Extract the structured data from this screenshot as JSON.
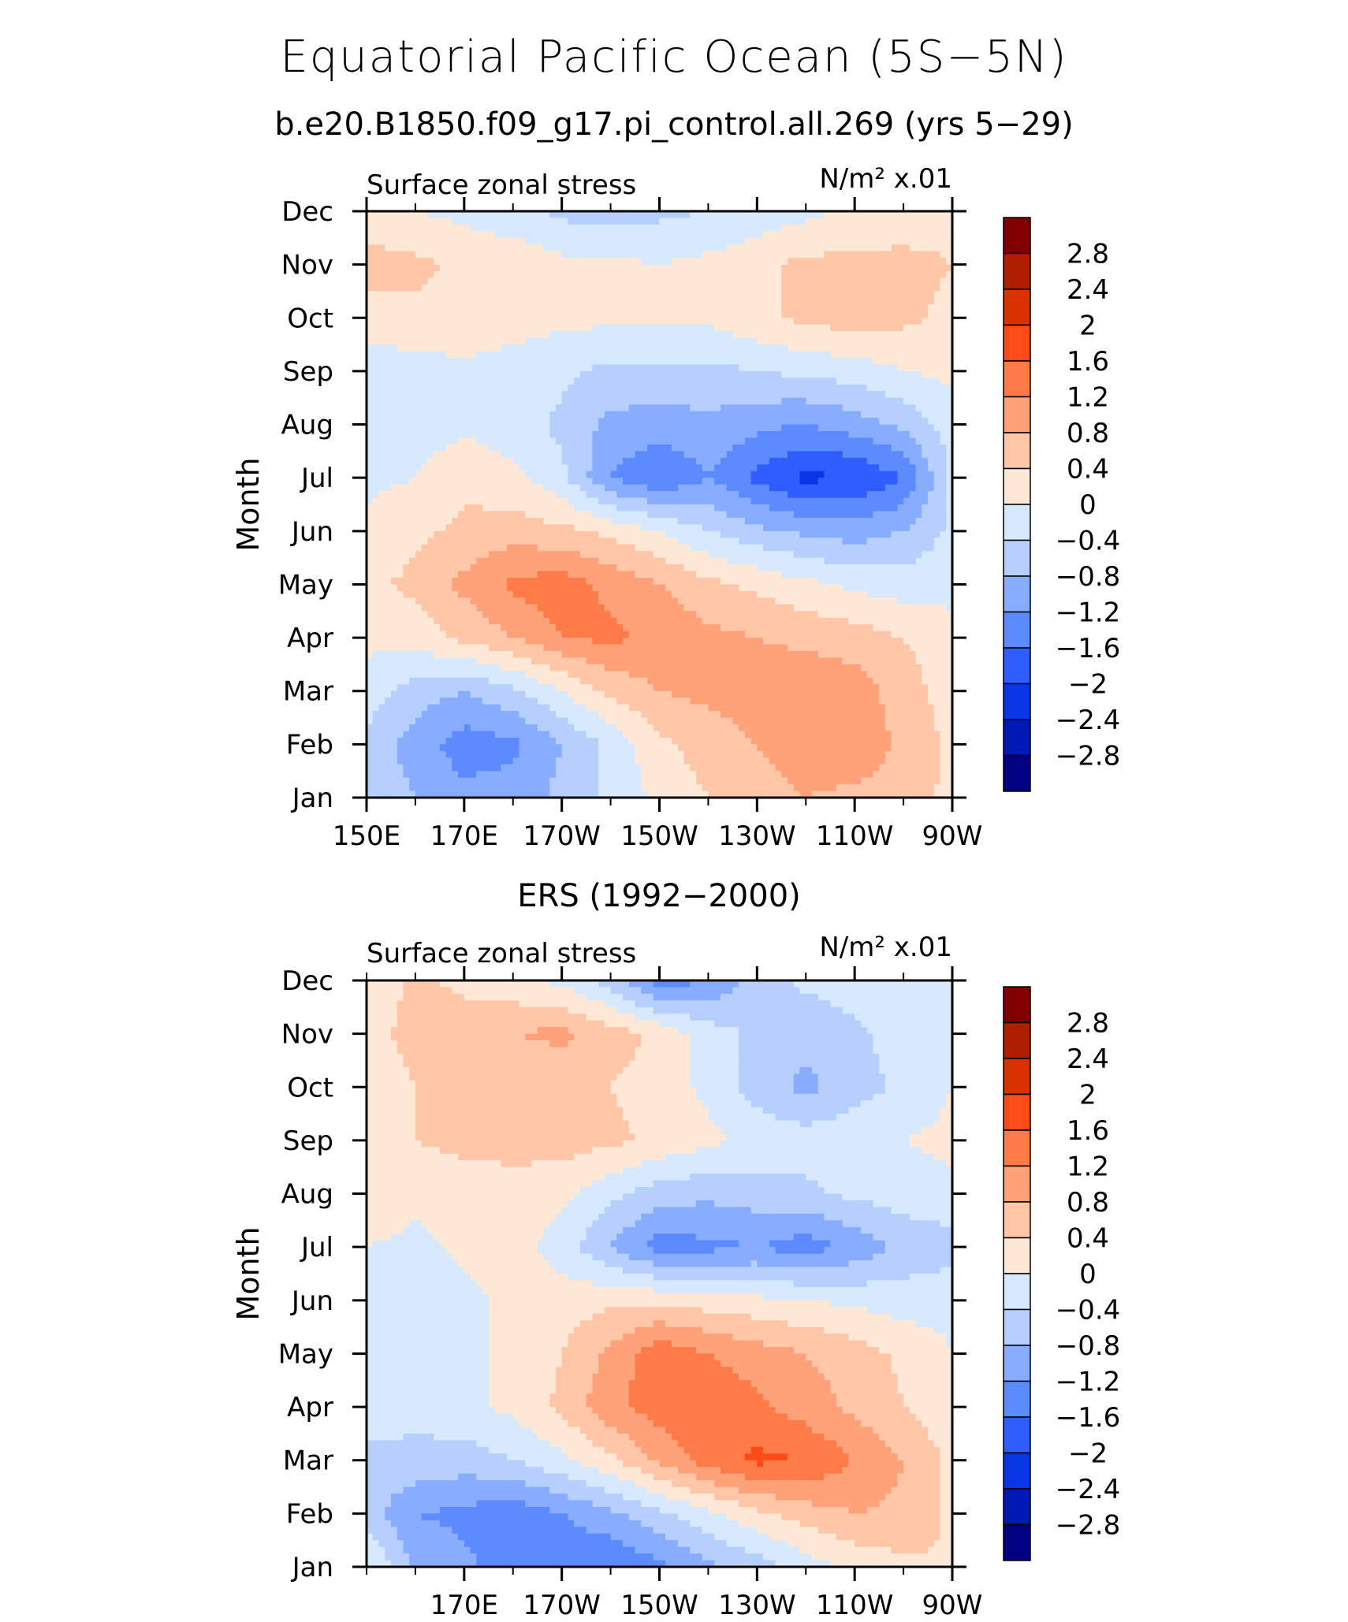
{
  "title": "Equatorial Pacific Ocean (5S−5N)",
  "subtitle": "b.e20.B1850.f09_g17.pi_control.all.269 (yrs 5−29)",
  "colorbar": {
    "labels": [
      "2.8",
      "2.4",
      "2",
      "1.6",
      "1.2",
      "0.8",
      "0.4",
      "0",
      "−0.4",
      "−0.8",
      "−1.2",
      "−1.6",
      "−2",
      "−2.4",
      "−2.8"
    ],
    "colors": [
      "#800000",
      "#b01e00",
      "#d93100",
      "#ff4a17",
      "#ff7b47",
      "#ffa27a",
      "#ffc7a8",
      "#ffe8d6",
      "#d7e9ff",
      "#b5cfff",
      "#88adff",
      "#5c8aff",
      "#2f5dff",
      "#0a35e6",
      "#0018b4",
      "#000080"
    ]
  },
  "chart_data": [
    {
      "type": "heatmap",
      "name": "model",
      "left_title": "Surface zonal stress",
      "right_title": "N/m² x.01",
      "ylabel": "Month",
      "months": [
        "Jan",
        "Feb",
        "Mar",
        "Apr",
        "May",
        "Jun",
        "Jul",
        "Aug",
        "Sep",
        "Oct",
        "Nov",
        "Dec"
      ],
      "xtick_labels": [
        "150E",
        "170E",
        "170W",
        "150W",
        "130W",
        "110W",
        "90W"
      ],
      "xtick_lons": [
        150,
        170,
        190,
        210,
        230,
        250,
        270
      ],
      "xlim": [
        150,
        270
      ],
      "levels": [
        -2.8,
        -2.4,
        -2,
        -1.6,
        -1.2,
        -0.8,
        -0.4,
        0,
        0.4,
        0.8,
        1.2,
        1.6,
        2,
        2.4,
        2.8
      ],
      "lons": [
        150,
        160,
        170,
        180,
        190,
        200,
        210,
        220,
        230,
        240,
        250,
        260,
        270
      ],
      "values": [
        [
          -0.5,
          -0.8,
          -1.1,
          -1.0,
          -0.7,
          -0.3,
          0.1,
          0.4,
          0.6,
          0.8,
          0.7,
          0.6,
          0.3
        ],
        [
          -0.5,
          -1.0,
          -1.4,
          -1.3,
          -0.8,
          -0.3,
          0.3,
          0.6,
          0.8,
          1.0,
          1.1,
          0.7,
          0.3
        ],
        [
          -0.2,
          -0.6,
          -0.8,
          -0.5,
          0.0,
          0.5,
          0.8,
          0.9,
          1.0,
          1.1,
          1.0,
          0.6,
          0.2
        ],
        [
          0.1,
          0.2,
          0.5,
          0.8,
          1.2,
          1.3,
          1.1,
          0.9,
          0.8,
          0.7,
          0.6,
          0.4,
          0.1
        ],
        [
          0.3,
          0.5,
          0.9,
          1.3,
          1.4,
          1.1,
          0.8,
          0.5,
          0.3,
          0.1,
          -0.1,
          -0.2,
          -0.1
        ],
        [
          0.1,
          0.3,
          0.5,
          0.6,
          0.5,
          0.3,
          0.0,
          -0.4,
          -0.7,
          -0.9,
          -1.0,
          -0.8,
          -0.3
        ],
        [
          -0.1,
          0.0,
          0.3,
          0.1,
          -0.3,
          -1.2,
          -1.6,
          -1.2,
          -1.7,
          -2.1,
          -2.0,
          -1.6,
          -0.3
        ],
        [
          -0.3,
          -0.2,
          -0.1,
          -0.2,
          -0.5,
          -0.9,
          -1.0,
          -0.9,
          -1.1,
          -1.2,
          -1.0,
          -0.7,
          -0.2
        ],
        [
          -0.2,
          -0.2,
          -0.1,
          -0.2,
          -0.3,
          -0.5,
          -0.5,
          -0.5,
          -0.4,
          -0.3,
          -0.2,
          0.0,
          0.1
        ],
        [
          0.2,
          0.3,
          0.3,
          0.2,
          0.1,
          0.1,
          0.1,
          0.1,
          0.3,
          0.5,
          0.6,
          0.5,
          0.3
        ],
        [
          0.6,
          0.5,
          0.3,
          0.3,
          0.1,
          0.1,
          0.0,
          0.1,
          0.3,
          0.5,
          0.5,
          0.5,
          0.4
        ],
        [
          0.1,
          0.0,
          -0.1,
          -0.3,
          -0.5,
          -0.6,
          -0.5,
          -0.4,
          -0.3,
          -0.1,
          0.1,
          0.2,
          0.3
        ]
      ]
    },
    {
      "type": "heatmap",
      "name": "observations",
      "panel_title": "ERS (1992−2000)",
      "left_title": "Surface zonal stress",
      "right_title": "N/m² x.01",
      "ylabel": "Month",
      "months": [
        "Jan",
        "Feb",
        "Mar",
        "Apr",
        "May",
        "Jun",
        "Jul",
        "Aug",
        "Sep",
        "Oct",
        "Nov",
        "Dec"
      ],
      "xtick_labels": [
        "170E",
        "170W",
        "150W",
        "130W",
        "110W",
        "90W"
      ],
      "xtick_lons": [
        170,
        190,
        210,
        230,
        250,
        270
      ],
      "xlim": [
        150,
        270
      ],
      "levels": [
        -2.8,
        -2.4,
        -2,
        -1.6,
        -1.2,
        -0.8,
        -0.4,
        0,
        0.4,
        0.8,
        1.2,
        1.6,
        2,
        2.4,
        2.8
      ],
      "lons": [
        150,
        160,
        170,
        180,
        190,
        200,
        210,
        220,
        230,
        240,
        250,
        260,
        270
      ],
      "values": [
        [
          0.1,
          -0.9,
          -1.1,
          -1.4,
          -1.5,
          -1.6,
          -1.3,
          -0.9,
          -0.6,
          -0.2,
          0.1,
          0.3,
          0.4
        ],
        [
          -0.6,
          -1.2,
          -1.3,
          -1.5,
          -1.2,
          -0.9,
          -0.5,
          -0.1,
          0.3,
          0.6,
          0.8,
          0.7,
          0.3
        ],
        [
          -0.5,
          -0.5,
          -0.6,
          -0.4,
          -0.1,
          0.3,
          0.9,
          1.4,
          1.7,
          1.6,
          1.2,
          0.8,
          0.3
        ],
        [
          -0.2,
          -0.3,
          -0.1,
          0.1,
          0.5,
          1.1,
          1.4,
          1.5,
          1.3,
          1.0,
          0.7,
          0.4,
          0.1
        ],
        [
          -0.1,
          -0.2,
          -0.1,
          0.1,
          0.4,
          0.9,
          1.5,
          1.2,
          1.0,
          0.8,
          0.6,
          0.3,
          0.0
        ],
        [
          -0.3,
          -0.4,
          -0.1,
          0.1,
          0.2,
          0.3,
          0.3,
          0.2,
          0.1,
          0.0,
          -0.1,
          -0.2,
          -0.1
        ],
        [
          0.0,
          -0.1,
          0.1,
          0.2,
          -0.2,
          -0.8,
          -1.4,
          -1.3,
          -1.2,
          -1.4,
          -1.1,
          -0.7,
          -0.6
        ],
        [
          0.3,
          0.1,
          0.2,
          0.3,
          0.1,
          -0.3,
          -0.6,
          -0.7,
          -0.6,
          -0.5,
          -0.3,
          -0.2,
          -0.1
        ],
        [
          0.3,
          0.4,
          0.5,
          0.5,
          0.6,
          0.5,
          0.3,
          0.1,
          -0.1,
          -0.2,
          -0.1,
          0.0,
          0.1
        ],
        [
          0.2,
          0.4,
          0.4,
          0.5,
          0.5,
          0.4,
          0.2,
          -0.1,
          -0.6,
          -0.9,
          -0.6,
          -0.3,
          0.0
        ],
        [
          0.3,
          0.5,
          0.6,
          0.8,
          0.9,
          0.6,
          0.3,
          -0.2,
          -0.5,
          -0.7,
          -0.5,
          -0.2,
          0.0
        ],
        [
          0.1,
          0.5,
          0.3,
          0.1,
          -0.1,
          -0.6,
          -1.4,
          -1.2,
          -0.6,
          -0.3,
          -0.2,
          -0.1,
          0.0
        ]
      ]
    }
  ]
}
